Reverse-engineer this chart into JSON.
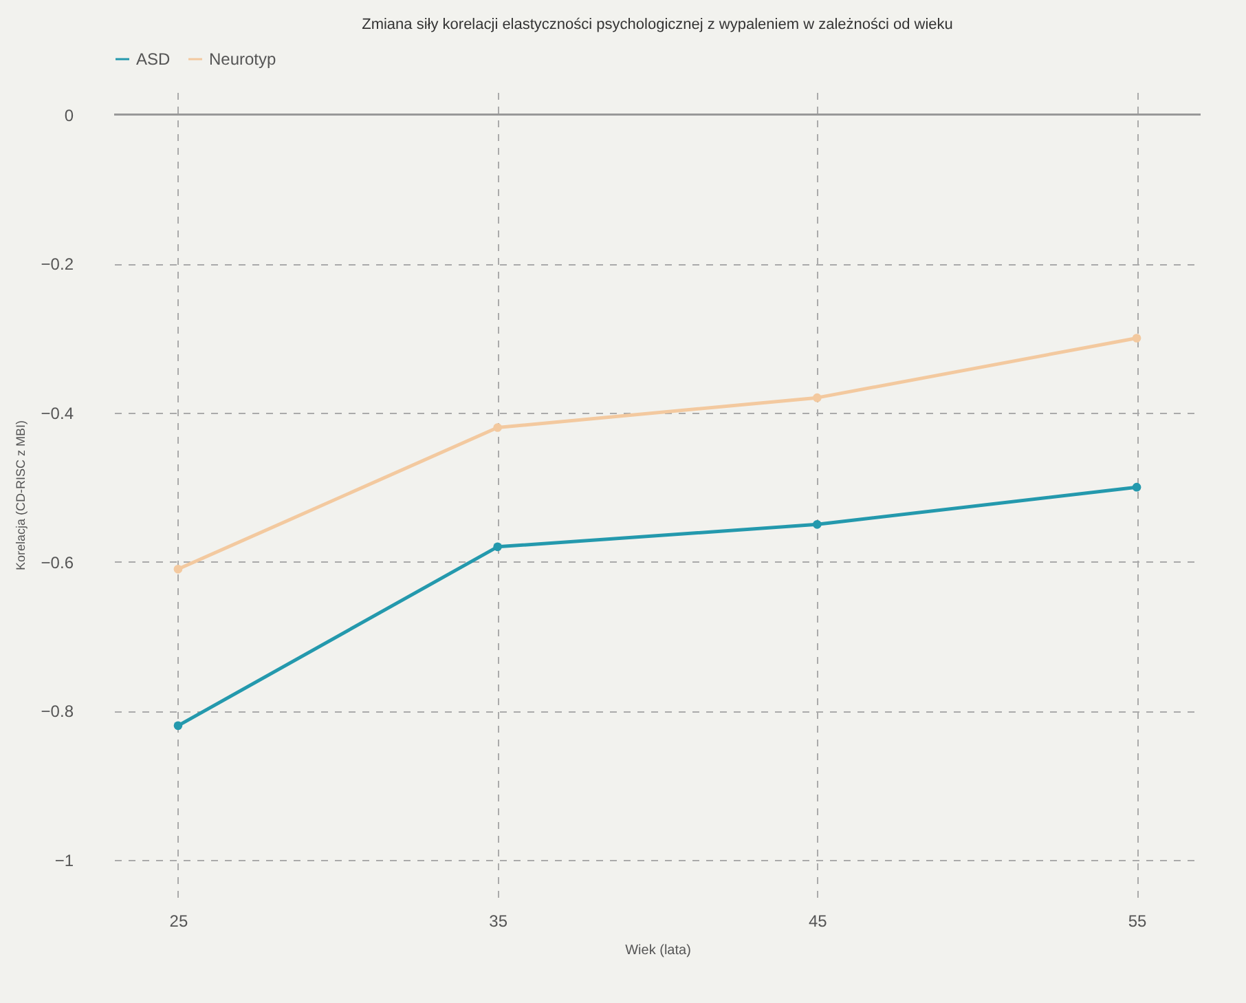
{
  "chart_data": {
    "type": "line",
    "title": "Zmiana siły korelacji elastyczności psychologicznej z wypaleniem w zależności od wieku",
    "xlabel": "Wiek (lata)",
    "ylabel": "Korelacja (CD-RISC z MBI)",
    "x": [
      25,
      35,
      45,
      55
    ],
    "series": [
      {
        "name": "ASD",
        "color": "#2499ad",
        "values": [
          -0.82,
          -0.58,
          -0.55,
          -0.5
        ]
      },
      {
        "name": "Neurotyp",
        "color": "#f3c99f",
        "values": [
          -0.61,
          -0.42,
          -0.38,
          -0.3
        ]
      }
    ],
    "xlim": [
      23,
      57
    ],
    "xticks": [
      25,
      35,
      45,
      55
    ],
    "ylim": [
      -1.05,
      0.03
    ],
    "yticks": [
      0,
      -0.2,
      -0.4,
      -0.6,
      -0.8,
      -1
    ],
    "ref_lines": [
      {
        "axis": "y",
        "value": 0,
        "color": "#999999"
      }
    ],
    "grid": true,
    "legend": "top",
    "marker": "circle",
    "line_style": "solid"
  }
}
